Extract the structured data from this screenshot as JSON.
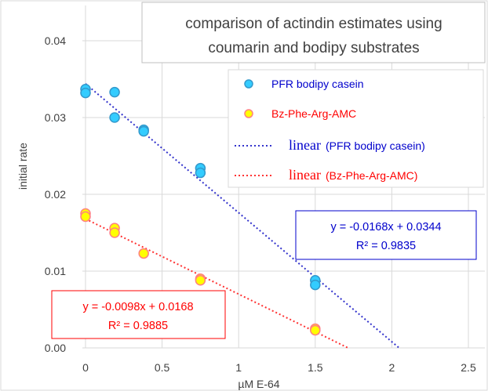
{
  "chart_data": {
    "type": "scatter",
    "title_lines": [
      "comparison of actindin estimates using",
      "coumarin and bodipy substrates"
    ],
    "xlabel": "µM E-64",
    "ylabel": "initial rate",
    "xlim": [
      0,
      2.5
    ],
    "ylim": [
      0,
      0.04
    ],
    "x_ticks": [
      "0",
      "0.5",
      "1",
      "1.5",
      "2",
      "2.5"
    ],
    "x_tick_values": [
      0,
      0.5,
      1,
      1.5,
      2,
      2.5
    ],
    "y_ticks": [
      "0.00",
      "0.01",
      "0.02",
      "0.03",
      "0.04"
    ],
    "y_tick_values": [
      0,
      0.01,
      0.02,
      0.03,
      0.04
    ],
    "grid": true,
    "series": [
      {
        "name": "PFR bodipy casein",
        "fill": "#33CCFF",
        "stroke": "#3399CC",
        "x": [
          0,
          0,
          0.19,
          0.19,
          0.38,
          0.38,
          0.75,
          0.75,
          1.5,
          1.5
        ],
        "y": [
          0.0337,
          0.0332,
          0.0333,
          0.03,
          0.0284,
          0.0282,
          0.0234,
          0.0228,
          0.0088,
          0.0082
        ]
      },
      {
        "name": "Bz-Phe-Arg-AMC",
        "fill": "#FFFF00",
        "stroke": "#FF8080",
        "x": [
          0,
          0,
          0.19,
          0.19,
          0.38,
          0.75,
          0.75,
          1.5,
          1.5
        ],
        "y": [
          0.0175,
          0.0171,
          0.0156,
          0.015,
          0.0123,
          0.009,
          0.0088,
          0.0025,
          0.0023
        ]
      }
    ],
    "trendlines": [
      {
        "label_word": "linear",
        "label_paren": "(PFR bodipy casein)",
        "slope": -0.0168,
        "intercept": 0.0344,
        "color": "#3333CC",
        "equation": "y = -0.0168x + 0.0344",
        "r2": "R² = 0.9835"
      },
      {
        "label_word": "linear",
        "label_paren": "(Bz-Phe-Arg-AMC)",
        "slope": -0.0098,
        "intercept": 0.0168,
        "color": "#FF3333",
        "equation": "y = -0.0098x + 0.0168",
        "r2": "R² = 0.9885"
      }
    ],
    "legend_placement": "top-right"
  }
}
